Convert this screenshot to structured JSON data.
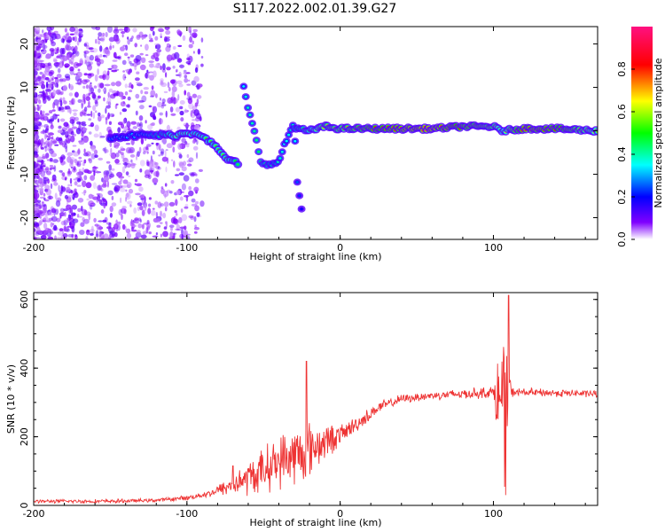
{
  "title": "S117.2022.002.01.39.G27",
  "chart_data": [
    {
      "type": "heatmap",
      "name": "spectrogram",
      "xlabel": "Height of straight line (km)",
      "ylabel": "Frequency (Hz)",
      "xlim": [
        -200,
        168
      ],
      "ylim": [
        -25,
        24
      ],
      "xticks": [
        -200,
        -100,
        0,
        100
      ],
      "yticks": [
        -20,
        -10,
        0,
        10,
        20
      ],
      "colorbar": {
        "label": "Normalized spectral amplitude",
        "range": [
          0,
          1
        ],
        "ticks": [
          0.0,
          0.2,
          0.4,
          0.6,
          0.8
        ],
        "tick_labels": [
          "0.0",
          "0.2",
          "0.4",
          "0.6",
          "0.8"
        ],
        "colors": [
          "#ffffff",
          "#8000ff",
          "#0000ff",
          "#00ffff",
          "#00ff00",
          "#ffff00",
          "#ff0000",
          "#ff0080"
        ]
      },
      "main_track": [
        {
          "x": -150,
          "f": -1.5,
          "a": 0.35
        },
        {
          "x": -130,
          "f": -1.0,
          "a": 0.35
        },
        {
          "x": -115,
          "f": -1.0,
          "a": 0.45
        },
        {
          "x": -108,
          "f": -1.0,
          "a": 0.6
        },
        {
          "x": -100,
          "f": -0.5,
          "a": 0.6
        },
        {
          "x": -93,
          "f": -0.5,
          "a": 0.55
        },
        {
          "x": -88,
          "f": -1.5,
          "a": 0.55
        },
        {
          "x": -82,
          "f": -3.5,
          "a": 0.55
        },
        {
          "x": -78,
          "f": -5.0,
          "a": 0.55
        },
        {
          "x": -72,
          "f": -7.0,
          "a": 0.55
        },
        {
          "x": -66,
          "f": -7.5,
          "a": 0.45
        }
      ],
      "secondary_track": [
        {
          "x": -63,
          "f": 10,
          "a": 0.35
        },
        {
          "x": -60,
          "f": 5,
          "a": 0.4
        },
        {
          "x": -57,
          "f": 1,
          "a": 0.4
        },
        {
          "x": -54,
          "f": -3,
          "a": 0.45
        },
        {
          "x": -52,
          "f": -7,
          "a": 0.45
        },
        {
          "x": -45,
          "f": -8,
          "a": 0.4
        },
        {
          "x": -40,
          "f": -7,
          "a": 0.4
        },
        {
          "x": -36,
          "f": -3,
          "a": 0.35
        },
        {
          "x": -30,
          "f": 2,
          "a": 0.4
        },
        {
          "x": -28,
          "f": -12,
          "a": 0.25
        },
        {
          "x": -25,
          "f": -18,
          "a": 0.2
        }
      ],
      "stable_band": [
        {
          "x": -30,
          "f": 0.5,
          "a": 0.45
        },
        {
          "x": -20,
          "f": 0.0,
          "a": 0.55
        },
        {
          "x": -10,
          "f": 1.0,
          "a": 0.7
        },
        {
          "x": 0,
          "f": 0.5,
          "a": 0.7
        },
        {
          "x": 20,
          "f": 0.5,
          "a": 0.8
        },
        {
          "x": 40,
          "f": 0.5,
          "a": 0.9
        },
        {
          "x": 60,
          "f": 0.5,
          "a": 0.95
        },
        {
          "x": 80,
          "f": 1.0,
          "a": 0.8
        },
        {
          "x": 100,
          "f": 1.0,
          "a": 0.7
        },
        {
          "x": 105,
          "f": 0.0,
          "a": 0.55
        },
        {
          "x": 120,
          "f": 0.5,
          "a": 0.9
        },
        {
          "x": 140,
          "f": 0.5,
          "a": 0.85
        },
        {
          "x": 168,
          "f": 0.0,
          "a": 0.6
        }
      ]
    },
    {
      "type": "line",
      "name": "snr",
      "xlabel": "Height of straight line (km)",
      "ylabel": "SNR (10 * v/v)",
      "xlim": [
        -200,
        168
      ],
      "ylim": [
        0,
        620
      ],
      "xticks": [
        -200,
        -100,
        0,
        100
      ],
      "yticks": [
        0,
        200,
        400,
        600
      ],
      "color": "#ee3333",
      "envelope": [
        {
          "x": -200,
          "mean": 12,
          "jitter": 6
        },
        {
          "x": -150,
          "mean": 12,
          "jitter": 7
        },
        {
          "x": -120,
          "mean": 15,
          "jitter": 6
        },
        {
          "x": -100,
          "mean": 22,
          "jitter": 8
        },
        {
          "x": -85,
          "mean": 35,
          "jitter": 12
        },
        {
          "x": -70,
          "mean": 60,
          "jitter": 35
        },
        {
          "x": -55,
          "mean": 90,
          "jitter": 70
        },
        {
          "x": -40,
          "mean": 130,
          "jitter": 90
        },
        {
          "x": -25,
          "mean": 150,
          "jitter": 110
        },
        {
          "x": -15,
          "mean": 175,
          "jitter": 80
        },
        {
          "x": 0,
          "mean": 205,
          "jitter": 35
        },
        {
          "x": 15,
          "mean": 250,
          "jitter": 25
        },
        {
          "x": 25,
          "mean": 285,
          "jitter": 20
        },
        {
          "x": 40,
          "mean": 310,
          "jitter": 15
        },
        {
          "x": 60,
          "mean": 320,
          "jitter": 15
        },
        {
          "x": 80,
          "mean": 325,
          "jitter": 18
        },
        {
          "x": 100,
          "mean": 330,
          "jitter": 20
        },
        {
          "x": 107,
          "mean": 290,
          "jitter": 300
        },
        {
          "x": 112,
          "mean": 330,
          "jitter": 15
        },
        {
          "x": 168,
          "mean": 325,
          "jitter": 12
        }
      ],
      "spikes": [
        {
          "x": -70,
          "y": 115
        },
        {
          "x": -22,
          "y": 420
        },
        {
          "x": 110,
          "y": 612
        },
        {
          "x": 108,
          "y": 30
        }
      ]
    }
  ]
}
